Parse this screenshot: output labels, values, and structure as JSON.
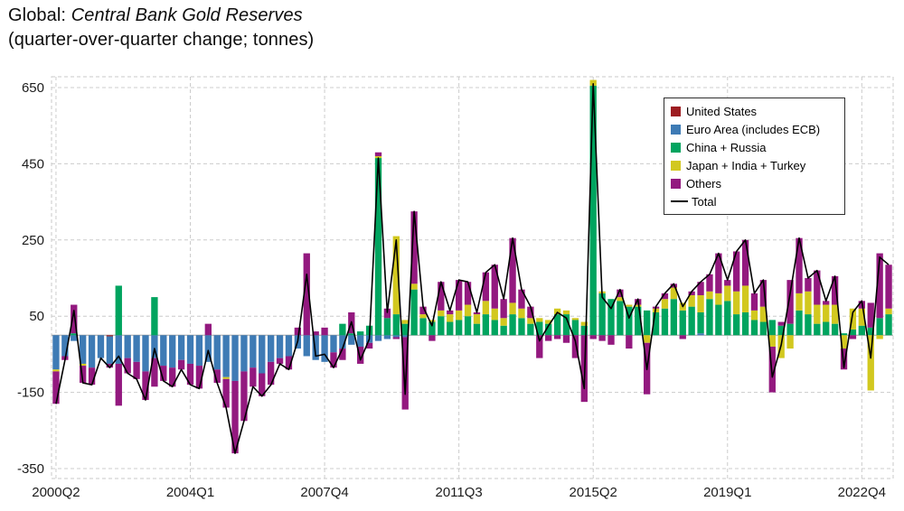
{
  "chart_data": {
    "type": "stacked-bar+line",
    "title_prefix": "Global: ",
    "title_italic": "Central Bank Gold Reserves",
    "subtitle": "(quarter-over-quarter change; tonnes)",
    "unit": "tonnes",
    "xlabel": "",
    "ylabel": "",
    "ylim": [
      -350,
      650
    ],
    "yticks": [
      650,
      450,
      250,
      50,
      -150,
      -350
    ],
    "grid": "dashed",
    "legend_position": "top-right",
    "x_tick_indices": [
      0,
      15,
      30,
      45,
      60,
      75,
      90
    ],
    "x_tick_labels": [
      "2000Q2",
      "2004Q1",
      "2007Q4",
      "2011Q3",
      "2015Q2",
      "2019Q1",
      "2022Q4"
    ],
    "x": [
      "2000Q2",
      "2000Q3",
      "2000Q4",
      "2001Q1",
      "2001Q2",
      "2001Q3",
      "2001Q4",
      "2002Q1",
      "2002Q2",
      "2002Q3",
      "2002Q4",
      "2003Q1",
      "2003Q2",
      "2003Q3",
      "2003Q4",
      "2004Q1",
      "2004Q2",
      "2004Q3",
      "2004Q4",
      "2005Q1",
      "2005Q2",
      "2005Q3",
      "2005Q4",
      "2006Q1",
      "2006Q2",
      "2006Q3",
      "2006Q4",
      "2007Q1",
      "2007Q2",
      "2007Q3",
      "2007Q4",
      "2008Q1",
      "2008Q2",
      "2008Q3",
      "2008Q4",
      "2009Q1",
      "2009Q2",
      "2009Q3",
      "2009Q4",
      "2010Q1",
      "2010Q2",
      "2010Q3",
      "2010Q4",
      "2011Q1",
      "2011Q2",
      "2011Q3",
      "2011Q4",
      "2012Q1",
      "2012Q2",
      "2012Q3",
      "2012Q4",
      "2013Q1",
      "2013Q2",
      "2013Q3",
      "2013Q4",
      "2014Q1",
      "2014Q2",
      "2014Q3",
      "2014Q4",
      "2015Q1",
      "2015Q2",
      "2015Q3",
      "2015Q4",
      "2016Q1",
      "2016Q2",
      "2016Q3",
      "2016Q4",
      "2017Q1",
      "2017Q2",
      "2017Q3",
      "2017Q4",
      "2018Q1",
      "2018Q2",
      "2018Q3",
      "2018Q4",
      "2019Q1",
      "2019Q2",
      "2019Q3",
      "2019Q4",
      "2020Q1",
      "2020Q2",
      "2020Q3",
      "2020Q4",
      "2021Q1",
      "2021Q2",
      "2021Q3",
      "2021Q4",
      "2022Q1",
      "2022Q2",
      "2022Q3",
      "2022Q4",
      "2023Q1",
      "2023Q2",
      "2023Q3"
    ],
    "series": [
      {
        "name": "United States",
        "color": "#9d1c21",
        "values": [
          0,
          0,
          0,
          0,
          0,
          0,
          -3,
          0,
          0,
          0,
          0,
          0,
          0,
          0,
          0,
          0,
          0,
          0,
          0,
          0,
          0,
          0,
          0,
          0,
          0,
          0,
          0,
          0,
          0,
          0,
          0,
          0,
          0,
          0,
          0,
          0,
          0,
          0,
          0,
          0,
          0,
          0,
          0,
          0,
          0,
          0,
          0,
          0,
          0,
          0,
          0,
          0,
          0,
          0,
          0,
          0,
          0,
          0,
          0,
          0,
          0,
          0,
          0,
          0,
          0,
          0,
          0,
          0,
          0,
          0,
          0,
          0,
          0,
          0,
          0,
          0,
          0,
          0,
          0,
          0,
          0,
          0,
          0,
          0,
          0,
          0,
          0,
          0,
          0,
          0,
          0,
          0,
          0,
          0
        ]
      },
      {
        "name": "Euro Area (includes ECB)",
        "color": "#3e7bb5",
        "values": [
          -90,
          -55,
          -15,
          -75,
          -85,
          -60,
          -72,
          -75,
          -60,
          -70,
          -95,
          -60,
          -80,
          -85,
          -65,
          -75,
          -80,
          -70,
          -90,
          -110,
          -120,
          -95,
          -85,
          -100,
          -70,
          -60,
          -55,
          -35,
          -55,
          -65,
          -70,
          -45,
          -35,
          -25,
          -30,
          -20,
          -15,
          -10,
          -5,
          -5,
          0,
          0,
          0,
          0,
          0,
          0,
          0,
          0,
          0,
          0,
          0,
          0,
          0,
          0,
          0,
          0,
          0,
          0,
          0,
          0,
          0,
          0,
          0,
          0,
          0,
          0,
          0,
          0,
          0,
          0,
          0,
          0,
          5,
          0,
          0,
          0,
          0,
          0,
          0,
          0,
          0,
          0,
          0,
          0,
          0,
          0,
          0,
          0,
          0,
          0,
          0,
          0,
          0,
          0
        ]
      },
      {
        "name": "China + Russia",
        "color": "#00a45f",
        "values": [
          0,
          0,
          5,
          0,
          0,
          0,
          0,
          130,
          0,
          0,
          0,
          100,
          0,
          0,
          0,
          0,
          0,
          0,
          0,
          0,
          0,
          0,
          0,
          0,
          0,
          0,
          0,
          0,
          0,
          0,
          0,
          0,
          30,
          5,
          10,
          25,
          465,
          45,
          55,
          30,
          120,
          45,
          35,
          50,
          35,
          40,
          50,
          30,
          55,
          40,
          25,
          55,
          45,
          30,
          35,
          30,
          55,
          55,
          40,
          25,
          655,
          110,
          95,
          90,
          75,
          75,
          65,
          60,
          70,
          95,
          65,
          75,
          55,
          95,
          80,
          90,
          55,
          60,
          40,
          35,
          40,
          25,
          30,
          65,
          55,
          30,
          35,
          30,
          5,
          15,
          25,
          20,
          45,
          55
        ]
      },
      {
        "name": "Japan + India + Turkey",
        "color": "#d2c81f",
        "values": [
          -5,
          0,
          0,
          -5,
          0,
          0,
          0,
          0,
          0,
          0,
          0,
          0,
          0,
          0,
          0,
          0,
          0,
          0,
          0,
          -5,
          0,
          0,
          0,
          0,
          0,
          0,
          0,
          0,
          0,
          0,
          0,
          0,
          0,
          0,
          0,
          0,
          5,
          0,
          205,
          10,
          15,
          10,
          5,
          15,
          20,
          25,
          30,
          25,
          35,
          30,
          20,
          30,
          25,
          15,
          10,
          10,
          15,
          10,
          5,
          10,
          15,
          5,
          0,
          10,
          5,
          5,
          -20,
          10,
          25,
          30,
          20,
          30,
          45,
          20,
          30,
          40,
          60,
          70,
          25,
          40,
          -30,
          -60,
          -35,
          45,
          60,
          50,
          45,
          50,
          -35,
          55,
          45,
          -145,
          -10,
          15
        ]
      },
      {
        "name": "Others",
        "color": "#93197f",
        "values": [
          -85,
          -10,
          75,
          -45,
          -45,
          0,
          -10,
          -110,
          -40,
          -45,
          -75,
          -75,
          -40,
          -50,
          -25,
          -55,
          -60,
          30,
          -35,
          -75,
          -190,
          -130,
          -50,
          -60,
          -60,
          -15,
          -35,
          20,
          215,
          10,
          20,
          -40,
          -30,
          55,
          -45,
          -15,
          10,
          25,
          -5,
          -190,
          190,
          20,
          -15,
          75,
          10,
          80,
          60,
          5,
          75,
          115,
          50,
          170,
          50,
          30,
          -60,
          -15,
          -10,
          -20,
          -60,
          -175,
          -10,
          -15,
          -25,
          20,
          -35,
          15,
          -135,
          5,
          15,
          10,
          -10,
          10,
          35,
          45,
          105,
          15,
          105,
          120,
          45,
          70,
          -120,
          10,
          115,
          145,
          35,
          90,
          10,
          75,
          -55,
          -10,
          20,
          65,
          170,
          115
        ]
      }
    ],
    "total": {
      "name": "Total",
      "color": "#000000",
      "values": [
        -180,
        -65,
        65,
        -125,
        -130,
        -60,
        -85,
        -55,
        -100,
        -115,
        -170,
        -35,
        -120,
        -135,
        -90,
        -130,
        -140,
        -40,
        -125,
        -190,
        -310,
        -225,
        -135,
        -160,
        -130,
        -75,
        -90,
        -15,
        160,
        -55,
        -50,
        -85,
        -35,
        35,
        -65,
        -10,
        465,
        60,
        250,
        -155,
        325,
        75,
        25,
        140,
        65,
        145,
        140,
        60,
        165,
        185,
        95,
        255,
        120,
        75,
        -15,
        25,
        60,
        45,
        -15,
        -140,
        660,
        100,
        70,
        120,
        45,
        95,
        -90,
        75,
        110,
        135,
        75,
        115,
        140,
        160,
        215,
        145,
        220,
        250,
        110,
        145,
        -110,
        -25,
        110,
        255,
        150,
        170,
        90,
        155,
        -85,
        60,
        90,
        -60,
        205,
        185
      ]
    }
  }
}
